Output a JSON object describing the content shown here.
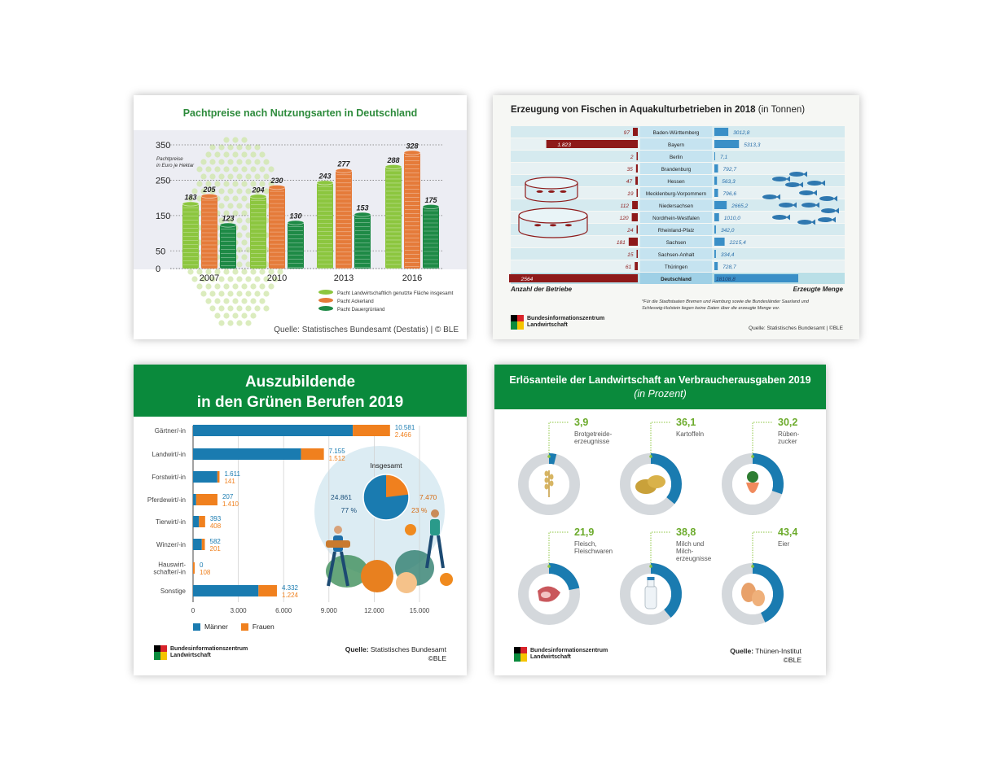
{
  "card_pacht": {
    "title": "Pachtpreise nach Nutzungsarten in Deutschland",
    "y_unit_label": "Pachtpreise\nin Euro je Hektar",
    "legend": [
      "Pacht Landwirtschaftlich genutzte Fläche insgesamt",
      "Pacht Ackerland",
      "Pacht Dauergrünland"
    ],
    "source": "Quelle: Statistisches Bundesamt (Destatis) | © BLE",
    "colors": {
      "insgesamt": "#8cc63f",
      "acker": "#e57b3a",
      "gruenland": "#1e8a46"
    }
  },
  "card_fisch": {
    "title_bold": "Erzeugung von Fischen in Aquakulturbetrieben in 2018",
    "title_rest": "(in Tonnen)",
    "left_label": "Anzahl der Betriebe",
    "right_label": "Erzeugte Menge",
    "footnote_line1": "*Für die Stadtstaaten Bremen und Hamburg sowie die Bundesländer Saarland und",
    "footnote_line2": "Schleswig-Holstein liegen keine Daten über die erzeugte Menge vor.",
    "logo_text": "Bundesinformationszentrum\nLandwirtschaft",
    "source": "Quelle: Statistisches Bundesamt | ©BLE"
  },
  "card_azubi": {
    "title_line1": "Auszubildende",
    "title_line2": "in den Grünen Berufen 2019",
    "legend_maenner": "Männer",
    "legend_frauen": "Frauen",
    "pie_title": "Insgesamt",
    "pie_maenner_value": "24.861",
    "pie_frauen_value": "7.470",
    "pie_maenner_pct": "77 %",
    "pie_frauen_pct": "23 %",
    "logo_text": "Bundesinformationszentrum\nLandwirtschaft",
    "source_bold": "Quelle:",
    "source_rest": "Statistisches Bundesamt",
    "copyright": "©BLE",
    "colors": {
      "maenner": "#1a7bb0",
      "frauen": "#f0801e"
    }
  },
  "card_erloes": {
    "title_line1": "Erlösanteile der Landwirtschaft an Verbraucherausgaben 2019",
    "title_line2": "(in Prozent)",
    "logo_text": "Bundesinformationszentrum\nLandwirtschaft",
    "source_bold": "Quelle:",
    "source_rest": "Thünen-Institut",
    "copyright": "©BLE",
    "icons": [
      "wheat-icon",
      "potato-icon",
      "beet-icon",
      "meat-icon",
      "milk-bottle-icon",
      "eggs-icon"
    ]
  },
  "chart_data": [
    {
      "type": "bar",
      "title": "Pachtpreise nach Nutzungsarten in Deutschland",
      "ylabel": "Pachtpreise in Euro je Hektar",
      "categories": [
        "2007",
        "2010",
        "2013",
        "2016"
      ],
      "yticks": [
        0,
        50,
        150,
        250,
        350
      ],
      "ylim": [
        0,
        350
      ],
      "series": [
        {
          "name": "Pacht Landwirtschaftlich genutzte Fläche insgesamt",
          "values": [
            183,
            204,
            243,
            288
          ]
        },
        {
          "name": "Pacht Ackerland",
          "values": [
            205,
            230,
            277,
            328
          ]
        },
        {
          "name": "Pacht Dauergrünland",
          "values": [
            123,
            130,
            153,
            175
          ]
        }
      ]
    },
    {
      "type": "bar",
      "title": "Erzeugung von Fischen in Aquakulturbetrieben in 2018 (in Tonnen)",
      "categories": [
        "Baden-Württemberg",
        "Bayern",
        "Berlin",
        "Brandenburg",
        "Hessen",
        "Mecklenburg-Vorpommern",
        "Niedersachsen",
        "Nordrhein-Westfalen",
        "Rheinland-Pfalz",
        "Sachsen",
        "Sachsen-Anhalt",
        "Thüringen",
        "Deutschland"
      ],
      "series": [
        {
          "name": "Anzahl der Betriebe",
          "values": [
            97,
            1823,
            2,
            35,
            47,
            19,
            112,
            120,
            24,
            181,
            15,
            61,
            2564
          ],
          "labels": [
            "97",
            "1.823",
            "2",
            "35",
            "47",
            "19",
            "112",
            "120",
            "24",
            "181",
            "15",
            "61",
            "2564"
          ]
        },
        {
          "name": "Erzeugte Menge",
          "values": [
            3012.8,
            5313.3,
            7.1,
            792.7,
            563.3,
            796.6,
            2665.2,
            1010.0,
            342.0,
            2215.4,
            334.4,
            728.7,
            18108.8
          ],
          "labels": [
            "3012,8",
            "5313,3",
            "7,1",
            "792,7",
            "563,3",
            "796,6",
            "2665,2",
            "1010,0",
            "342,0",
            "2215,4",
            "334,4",
            "728,7",
            "18108,8"
          ]
        }
      ]
    },
    {
      "type": "bar",
      "title": "Auszubildende in den Grünen Berufen 2019",
      "categories": [
        "Gärtner/-in",
        "Landwirt/-in",
        "Forstwirt/-in",
        "Pferdewirt/-in",
        "Tierwirt/-in",
        "Winzer/-in",
        "Hauswirt-\nschafter/-in",
        "Sonstige"
      ],
      "xticks": [
        "0",
        "3.000",
        "6.000",
        "9.000",
        "12.000",
        "15.000"
      ],
      "xlim": [
        0,
        15000
      ],
      "stacked": true,
      "series": [
        {
          "name": "Männer",
          "values": [
            10581,
            7155,
            1611,
            207,
            393,
            582,
            0,
            4332
          ],
          "labels": [
            "10.581",
            "7.155",
            "1.611",
            "207",
            "393",
            "582",
            "0",
            "4.332"
          ]
        },
        {
          "name": "Frauen",
          "values": [
            2466,
            1512,
            141,
            1410,
            408,
            201,
            108,
            1224
          ],
          "labels": [
            "2.466",
            "1.512",
            "141",
            "1.410",
            "408",
            "201",
            "108",
            "1.224"
          ]
        }
      ],
      "pie": {
        "title": "Insgesamt",
        "values": [
          24861,
          7470
        ],
        "labels": [
          "24.861",
          "7.470"
        ],
        "percent": [
          "77 %",
          "23 %"
        ]
      }
    },
    {
      "type": "pie",
      "title": "Erlösanteile der Landwirtschaft an Verbraucherausgaben 2019 (in Prozent)",
      "categories": [
        "Brotgetreide-\nerzeugnisse",
        "Kartoffeln",
        "Rüben-\nzucker",
        "Fleisch,\nFleischwaren",
        "Milch und\nMilch-\nerzeugnisse",
        "Eier"
      ],
      "values": [
        3.9,
        36.1,
        30.2,
        21.9,
        38.8,
        43.4
      ],
      "labels": [
        "3,9",
        "36,1",
        "30,2",
        "21,9",
        "38,8",
        "43,4"
      ]
    }
  ]
}
